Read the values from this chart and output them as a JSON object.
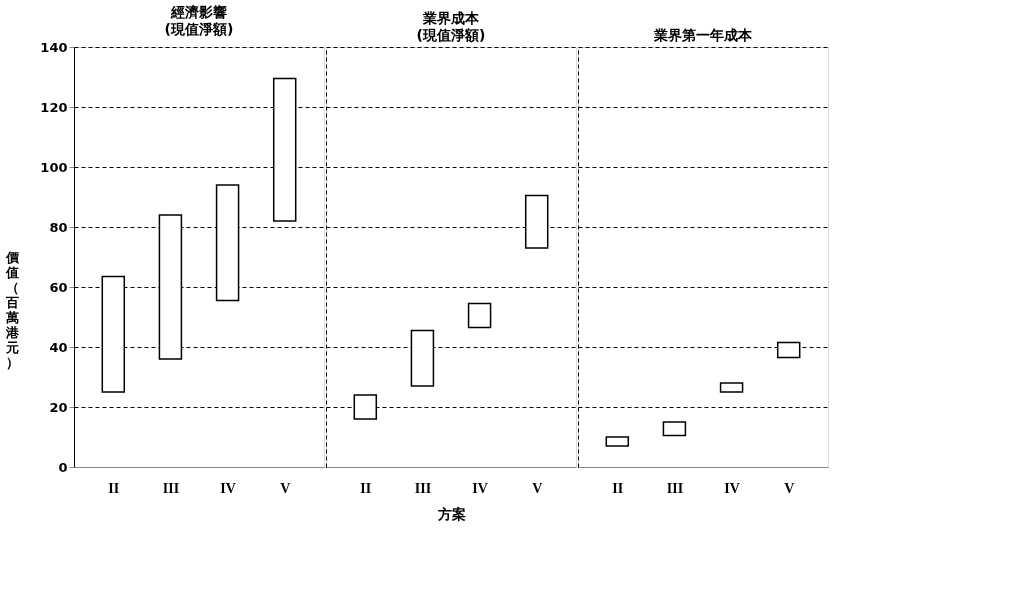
{
  "chart_data": [
    {
      "type": "bar",
      "title": "經濟影響",
      "subtitle": "(現值淨額)",
      "ylabel": "價值（百萬港元）",
      "categories": [
        "II",
        "III",
        "IV",
        "V"
      ],
      "base": [
        25,
        36,
        55.5,
        82
      ],
      "values": [
        38.5,
        48,
        38.5,
        47.5
      ],
      "color": "#ffffff",
      "ylim": [
        0,
        140
      ],
      "yticks": [
        0,
        20,
        40,
        60,
        80,
        100,
        120,
        140
      ],
      "grid": "y"
    },
    {
      "type": "bar",
      "title": "業界成本",
      "subtitle": "(現值淨額)",
      "xlabel": "方案",
      "categories": [
        "II",
        "III",
        "IV",
        "V"
      ],
      "base": [
        16,
        27,
        46.5,
        73
      ],
      "values": [
        8,
        18.5,
        8,
        17.5
      ],
      "color": "#ffffff",
      "ylim": [
        0,
        140
      ],
      "yticks": [
        0,
        20,
        40,
        60,
        80,
        100,
        120,
        140
      ],
      "grid": "y",
      "tick_labels": "x"
    },
    {
      "type": "bar",
      "title": "業界第一年成本",
      "categories": [
        "II",
        "III",
        "IV",
        "V"
      ],
      "base": [
        7,
        10.5,
        25,
        36.5
      ],
      "values": [
        3,
        4.5,
        3,
        5
      ],
      "color": "#ffffff",
      "ylim": [
        0,
        140
      ],
      "yticks": [
        0,
        20,
        40,
        60,
        80,
        100,
        120,
        140
      ],
      "grid": "y",
      "tick_labels": "x"
    }
  ]
}
